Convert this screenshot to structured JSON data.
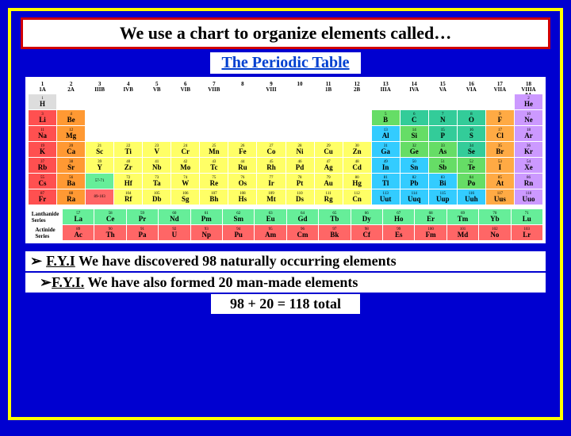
{
  "header": "We use a chart to organize elements called…",
  "subtitle": "The Periodic Table",
  "groupNums": [
    "1\n1A",
    "2\n2A",
    "3\nIIIB",
    "4\nIVB",
    "5\nVB",
    "6\nVIB",
    "7\nVIIB",
    "8",
    "9\nVIII",
    "10",
    "11\n1B",
    "12\n2B",
    "13\nIIIA",
    "14\nIVA",
    "15\nVA",
    "16\nVIA",
    "17\nVIIA",
    "18\nVIIIA\n8A"
  ],
  "colors": {
    "alkali": "#ff5050",
    "alkaline": "#ff9933",
    "transition": "#ffff66",
    "posttrans": "#33ccff",
    "metalloid": "#66dd66",
    "nonmetal": "#33cc99",
    "halogen": "#ffaa44",
    "noble": "#cc99ff",
    "lanth": "#66ee99",
    "act": "#ff6666",
    "h": "#dddddd"
  },
  "rows": [
    [
      {
        "n": "1",
        "s": "H",
        "c": "h"
      },
      null,
      null,
      null,
      null,
      null,
      null,
      null,
      null,
      null,
      null,
      null,
      null,
      null,
      null,
      null,
      null,
      {
        "n": "2",
        "s": "He",
        "c": "noble"
      }
    ],
    [
      {
        "n": "3",
        "s": "Li",
        "c": "alkali"
      },
      {
        "n": "4",
        "s": "Be",
        "c": "alkaline"
      },
      null,
      null,
      null,
      null,
      null,
      null,
      null,
      null,
      null,
      null,
      {
        "n": "5",
        "s": "B",
        "c": "metalloid"
      },
      {
        "n": "6",
        "s": "C",
        "c": "nonmetal"
      },
      {
        "n": "7",
        "s": "N",
        "c": "nonmetal"
      },
      {
        "n": "8",
        "s": "O",
        "c": "nonmetal"
      },
      {
        "n": "9",
        "s": "F",
        "c": "halogen"
      },
      {
        "n": "10",
        "s": "Ne",
        "c": "noble"
      }
    ],
    [
      {
        "n": "11",
        "s": "Na",
        "c": "alkali"
      },
      {
        "n": "12",
        "s": "Mg",
        "c": "alkaline"
      },
      null,
      null,
      null,
      null,
      null,
      null,
      null,
      null,
      null,
      null,
      {
        "n": "13",
        "s": "Al",
        "c": "posttrans"
      },
      {
        "n": "14",
        "s": "Si",
        "c": "metalloid"
      },
      {
        "n": "15",
        "s": "P",
        "c": "nonmetal"
      },
      {
        "n": "16",
        "s": "S",
        "c": "nonmetal"
      },
      {
        "n": "17",
        "s": "Cl",
        "c": "halogen"
      },
      {
        "n": "18",
        "s": "Ar",
        "c": "noble"
      }
    ],
    [
      {
        "n": "19",
        "s": "K",
        "c": "alkali"
      },
      {
        "n": "20",
        "s": "Ca",
        "c": "alkaline"
      },
      {
        "n": "21",
        "s": "Sc",
        "c": "transition"
      },
      {
        "n": "22",
        "s": "Ti",
        "c": "transition"
      },
      {
        "n": "23",
        "s": "V",
        "c": "transition"
      },
      {
        "n": "24",
        "s": "Cr",
        "c": "transition"
      },
      {
        "n": "25",
        "s": "Mn",
        "c": "transition"
      },
      {
        "n": "26",
        "s": "Fe",
        "c": "transition"
      },
      {
        "n": "27",
        "s": "Co",
        "c": "transition"
      },
      {
        "n": "28",
        "s": "Ni",
        "c": "transition"
      },
      {
        "n": "29",
        "s": "Cu",
        "c": "transition"
      },
      {
        "n": "30",
        "s": "Zn",
        "c": "transition"
      },
      {
        "n": "31",
        "s": "Ga",
        "c": "posttrans"
      },
      {
        "n": "32",
        "s": "Ge",
        "c": "metalloid"
      },
      {
        "n": "33",
        "s": "As",
        "c": "metalloid"
      },
      {
        "n": "34",
        "s": "Se",
        "c": "nonmetal"
      },
      {
        "n": "35",
        "s": "Br",
        "c": "halogen"
      },
      {
        "n": "36",
        "s": "Kr",
        "c": "noble"
      }
    ],
    [
      {
        "n": "37",
        "s": "Rb",
        "c": "alkali"
      },
      {
        "n": "38",
        "s": "Sr",
        "c": "alkaline"
      },
      {
        "n": "39",
        "s": "Y",
        "c": "transition"
      },
      {
        "n": "40",
        "s": "Zr",
        "c": "transition"
      },
      {
        "n": "41",
        "s": "Nb",
        "c": "transition"
      },
      {
        "n": "42",
        "s": "Mo",
        "c": "transition"
      },
      {
        "n": "43",
        "s": "Tc",
        "c": "transition"
      },
      {
        "n": "44",
        "s": "Ru",
        "c": "transition"
      },
      {
        "n": "45",
        "s": "Rh",
        "c": "transition"
      },
      {
        "n": "46",
        "s": "Pd",
        "c": "transition"
      },
      {
        "n": "47",
        "s": "Ag",
        "c": "transition"
      },
      {
        "n": "48",
        "s": "Cd",
        "c": "transition"
      },
      {
        "n": "49",
        "s": "In",
        "c": "posttrans"
      },
      {
        "n": "50",
        "s": "Sn",
        "c": "posttrans"
      },
      {
        "n": "51",
        "s": "Sb",
        "c": "metalloid"
      },
      {
        "n": "52",
        "s": "Te",
        "c": "metalloid"
      },
      {
        "n": "53",
        "s": "I",
        "c": "halogen"
      },
      {
        "n": "54",
        "s": "Xe",
        "c": "noble"
      }
    ],
    [
      {
        "n": "55",
        "s": "Cs",
        "c": "alkali"
      },
      {
        "n": "56",
        "s": "Ba",
        "c": "alkaline"
      },
      {
        "n": "57-71",
        "s": "",
        "c": "lanth"
      },
      {
        "n": "72",
        "s": "Hf",
        "c": "transition"
      },
      {
        "n": "73",
        "s": "Ta",
        "c": "transition"
      },
      {
        "n": "74",
        "s": "W",
        "c": "transition"
      },
      {
        "n": "75",
        "s": "Re",
        "c": "transition"
      },
      {
        "n": "76",
        "s": "Os",
        "c": "transition"
      },
      {
        "n": "77",
        "s": "Ir",
        "c": "transition"
      },
      {
        "n": "78",
        "s": "Pt",
        "c": "transition"
      },
      {
        "n": "79",
        "s": "Au",
        "c": "transition"
      },
      {
        "n": "80",
        "s": "Hg",
        "c": "transition"
      },
      {
        "n": "81",
        "s": "Tl",
        "c": "posttrans"
      },
      {
        "n": "82",
        "s": "Pb",
        "c": "posttrans"
      },
      {
        "n": "83",
        "s": "Bi",
        "c": "posttrans"
      },
      {
        "n": "84",
        "s": "Po",
        "c": "metalloid"
      },
      {
        "n": "85",
        "s": "At",
        "c": "halogen"
      },
      {
        "n": "86",
        "s": "Rn",
        "c": "noble"
      }
    ],
    [
      {
        "n": "87",
        "s": "Fr",
        "c": "alkali"
      },
      {
        "n": "88",
        "s": "Ra",
        "c": "alkaline"
      },
      {
        "n": "89-103",
        "s": "",
        "c": "act"
      },
      {
        "n": "104",
        "s": "Rf",
        "c": "transition"
      },
      {
        "n": "105",
        "s": "Db",
        "c": "transition"
      },
      {
        "n": "106",
        "s": "Sg",
        "c": "transition"
      },
      {
        "n": "107",
        "s": "Bh",
        "c": "transition"
      },
      {
        "n": "108",
        "s": "Hs",
        "c": "transition"
      },
      {
        "n": "109",
        "s": "Mt",
        "c": "transition"
      },
      {
        "n": "110",
        "s": "Ds",
        "c": "transition"
      },
      {
        "n": "111",
        "s": "Rg",
        "c": "transition"
      },
      {
        "n": "112",
        "s": "Cn",
        "c": "transition"
      },
      {
        "n": "113",
        "s": "Uut",
        "c": "posttrans"
      },
      {
        "n": "114",
        "s": "Uuq",
        "c": "posttrans"
      },
      {
        "n": "115",
        "s": "Uup",
        "c": "posttrans"
      },
      {
        "n": "116",
        "s": "Uuh",
        "c": "posttrans"
      },
      {
        "n": "117",
        "s": "Uus",
        "c": "halogen"
      },
      {
        "n": "118",
        "s": "Uuo",
        "c": "noble"
      }
    ]
  ],
  "lanthLabel": "Lanthanide\nSeries",
  "actLabel": "Actinide\nSeries",
  "lanth": [
    {
      "n": "57",
      "s": "La"
    },
    {
      "n": "58",
      "s": "Ce"
    },
    {
      "n": "59",
      "s": "Pr"
    },
    {
      "n": "60",
      "s": "Nd"
    },
    {
      "n": "61",
      "s": "Pm"
    },
    {
      "n": "62",
      "s": "Sm"
    },
    {
      "n": "63",
      "s": "Eu"
    },
    {
      "n": "64",
      "s": "Gd"
    },
    {
      "n": "65",
      "s": "Tb"
    },
    {
      "n": "66",
      "s": "Dy"
    },
    {
      "n": "67",
      "s": "Ho"
    },
    {
      "n": "68",
      "s": "Er"
    },
    {
      "n": "69",
      "s": "Tm"
    },
    {
      "n": "70",
      "s": "Yb"
    },
    {
      "n": "71",
      "s": "Lu"
    }
  ],
  "act": [
    {
      "n": "89",
      "s": "Ac"
    },
    {
      "n": "90",
      "s": "Th"
    },
    {
      "n": "91",
      "s": "Pa"
    },
    {
      "n": "92",
      "s": "U"
    },
    {
      "n": "93",
      "s": "Np"
    },
    {
      "n": "94",
      "s": "Pu"
    },
    {
      "n": "95",
      "s": "Am"
    },
    {
      "n": "96",
      "s": "Cm"
    },
    {
      "n": "97",
      "s": "Bk"
    },
    {
      "n": "98",
      "s": "Cf"
    },
    {
      "n": "99",
      "s": "Es"
    },
    {
      "n": "100",
      "s": "Fm"
    },
    {
      "n": "101",
      "s": "Md"
    },
    {
      "n": "102",
      "s": "No"
    },
    {
      "n": "103",
      "s": "Lr"
    }
  ],
  "footer": {
    "line1_fyi": "F.Y.I",
    "line1_rest": " We have discovered 98 naturally occurring elements",
    "line2_fyi": "F.Y.I.",
    "line2_rest": " We have also formed 20 man-made elements",
    "total": "98 + 20 = 118 total"
  }
}
